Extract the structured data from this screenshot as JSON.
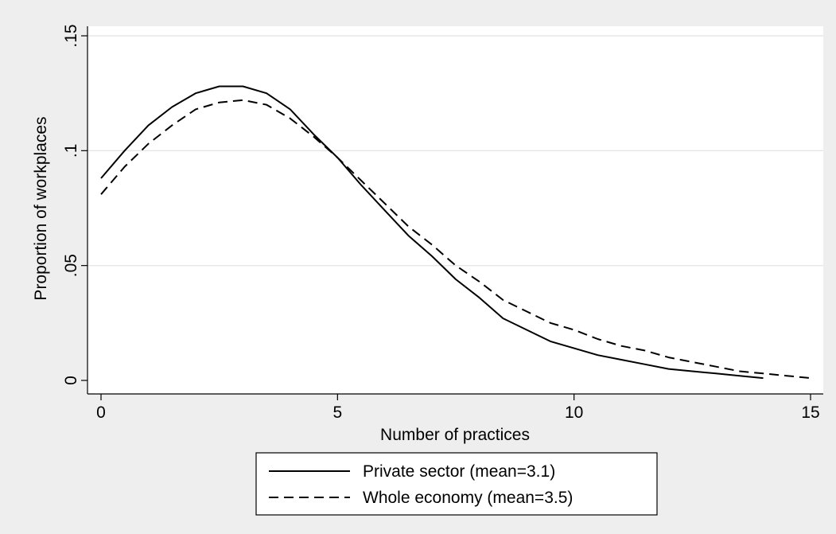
{
  "chart_data": {
    "type": "line",
    "title": "",
    "xlabel": "Number of practices",
    "ylabel": "Proportion of workplaces",
    "xlim": [
      0,
      15
    ],
    "ylim": [
      0,
      0.15
    ],
    "x_ticks": [
      0,
      5,
      10,
      15
    ],
    "x_tick_labels": [
      "0",
      "5",
      "10",
      "15"
    ],
    "y_ticks": [
      0,
      0.05,
      0.1,
      0.15
    ],
    "y_tick_labels": [
      "0",
      ".05",
      ".1",
      ".15"
    ],
    "grid": "horizontal",
    "legend_position": "bottom",
    "series": [
      {
        "name": "Private sector (mean=3.1)",
        "style": "solid",
        "color": "#000000",
        "x": [
          0,
          0.5,
          1,
          1.5,
          2,
          2.5,
          3,
          3.5,
          4,
          4.5,
          5,
          5.5,
          6,
          6.5,
          7,
          7.5,
          8,
          8.5,
          9,
          9.5,
          10,
          10.5,
          11,
          11.5,
          12,
          12.5,
          13,
          13.5,
          14
        ],
        "y": [
          0.088,
          0.1,
          0.111,
          0.119,
          0.125,
          0.128,
          0.128,
          0.125,
          0.118,
          0.107,
          0.097,
          0.085,
          0.074,
          0.063,
          0.054,
          0.044,
          0.036,
          0.027,
          0.022,
          0.017,
          0.014,
          0.011,
          0.009,
          0.007,
          0.005,
          0.004,
          0.003,
          0.002,
          0.001
        ]
      },
      {
        "name": "Whole economy (mean=3.5)",
        "style": "dashed",
        "color": "#000000",
        "x": [
          0,
          0.5,
          1,
          1.5,
          2,
          2.5,
          3,
          3.5,
          4,
          4.5,
          5,
          5.5,
          6,
          6.5,
          7,
          7.5,
          8,
          8.5,
          9,
          9.5,
          10,
          10.5,
          11,
          11.5,
          12,
          12.5,
          13,
          13.5,
          14,
          14.5,
          15
        ],
        "y": [
          0.081,
          0.093,
          0.103,
          0.111,
          0.118,
          0.121,
          0.122,
          0.12,
          0.114,
          0.106,
          0.097,
          0.087,
          0.077,
          0.067,
          0.059,
          0.05,
          0.043,
          0.035,
          0.03,
          0.025,
          0.022,
          0.018,
          0.015,
          0.013,
          0.01,
          0.008,
          0.006,
          0.004,
          0.003,
          0.002,
          0.001
        ]
      }
    ]
  }
}
